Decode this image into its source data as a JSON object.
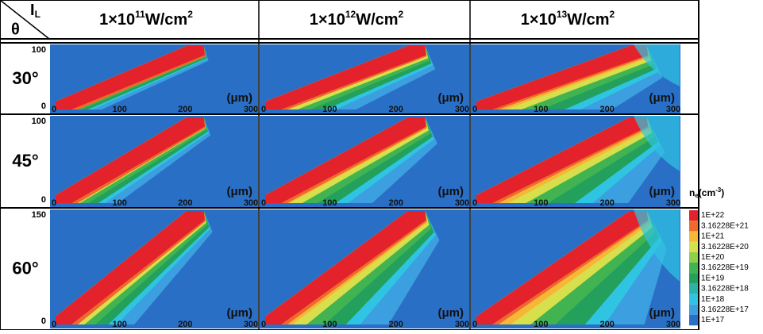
{
  "corner": {
    "row_symbol": "θ",
    "col_symbol": "I",
    "col_symbol_sub": "L"
  },
  "columns": [
    {
      "base": "1×10",
      "exp": "11",
      "unit": "W/cm",
      "unit_exp": "2"
    },
    {
      "base": "1×10",
      "exp": "12",
      "unit": "W/cm",
      "unit_exp": "2"
    },
    {
      "base": "1×10",
      "exp": "13",
      "unit": "W/cm",
      "unit_exp": "2"
    }
  ],
  "rows": [
    {
      "label": "30°",
      "y_ticks": [
        "100",
        "0"
      ]
    },
    {
      "label": "45°",
      "y_ticks": [
        "100",
        "0"
      ]
    },
    {
      "label": "60°",
      "y_ticks": [
        "150",
        "0"
      ]
    }
  ],
  "x_ticks": [
    "0",
    "100",
    "200",
    "300"
  ],
  "x_unit": "(μm)",
  "legend": {
    "title": "n",
    "title_sub": "e",
    "title_unit": "(cm",
    "title_unit_exp": "-3",
    "title_close": ")",
    "levels": [
      {
        "label": "1E+22",
        "color": "#e3222b"
      },
      {
        "label": "3.16228E+21",
        "color": "#ee6a2c"
      },
      {
        "label": "1E+21",
        "color": "#f6b737"
      },
      {
        "label": "3.16228E+20",
        "color": "#d8df4c"
      },
      {
        "label": "1E+20",
        "color": "#8fcf4b"
      },
      {
        "label": "3.16228E+19",
        "color": "#41b451"
      },
      {
        "label": "1E+19",
        "color": "#23a05c"
      },
      {
        "label": "3.16228E+18",
        "color": "#2cb3a8"
      },
      {
        "label": "1E+18",
        "color": "#2fc5e2"
      },
      {
        "label": "3.16228E+17",
        "color": "#3b9fe0"
      },
      {
        "label": "1E+17",
        "color": "#2a6fc6"
      }
    ]
  }
}
